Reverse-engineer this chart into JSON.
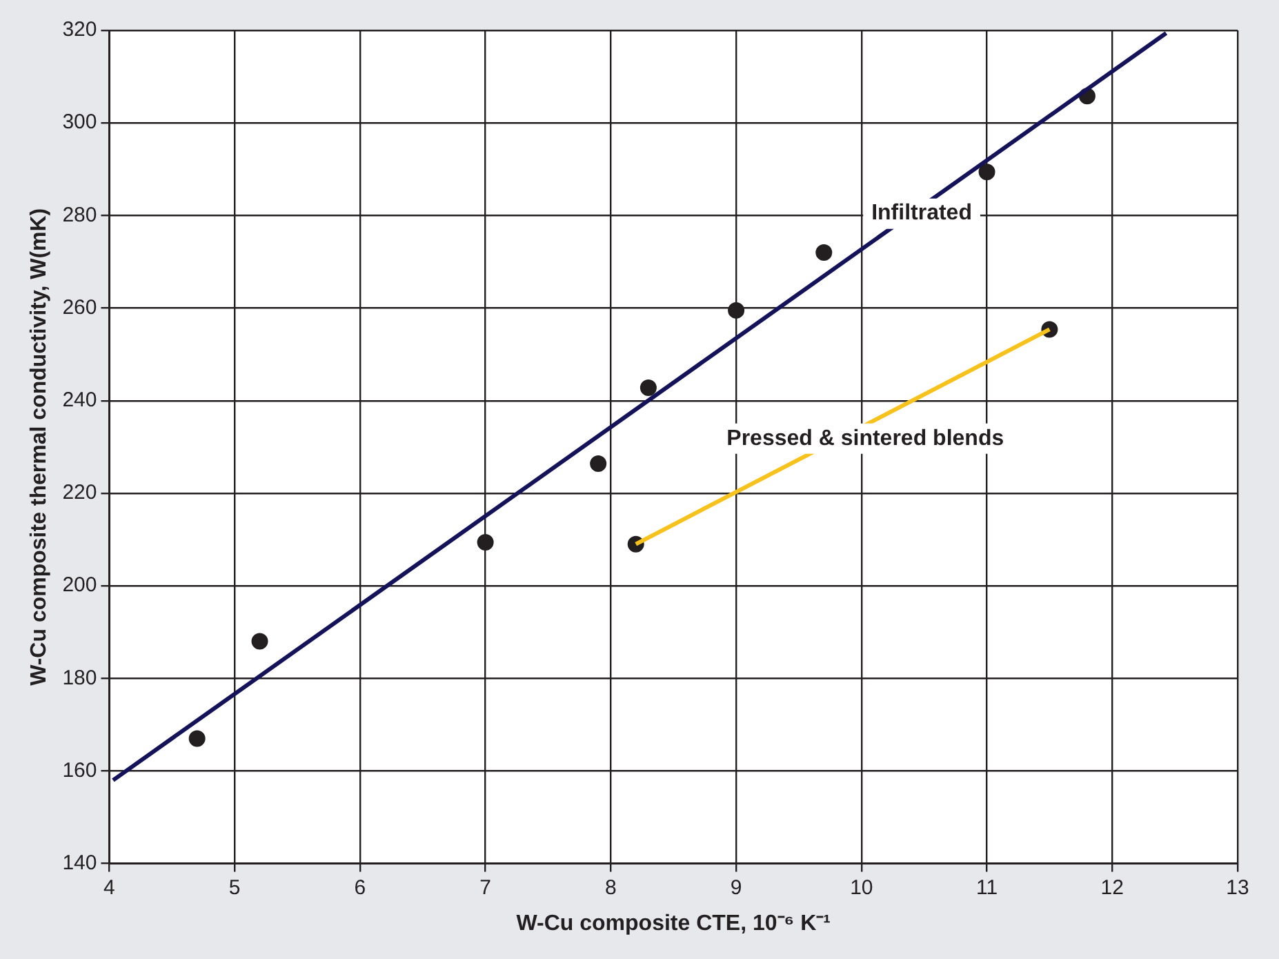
{
  "chart_data": {
    "type": "scatter",
    "xlabel": "W-Cu composite CTE, 10⁻⁶ K⁻¹",
    "ylabel": "W-Cu composite thermal conductivity, W(mK)",
    "series": [
      {
        "type": "line",
        "marker": "none",
        "color": "#14135a",
        "x": [
          4.03,
          12.43
        ],
        "values": [
          158,
          319.4
        ]
      },
      {
        "type": "line",
        "marker": "none",
        "color": "#f7c21b",
        "x": [
          8.2,
          11.5
        ],
        "values": [
          209,
          255.4
        ]
      },
      {
        "marker": "circle",
        "color": "#231f20",
        "x": [
          4.7,
          5.2,
          7.0,
          7.9,
          8.3,
          9.0,
          9.7,
          11.0,
          11.8,
          8.2,
          11.5
        ],
        "values": [
          167,
          188,
          209.4,
          226.4,
          242.8,
          259.5,
          272,
          289.4,
          305.8,
          209,
          255.4
        ]
      }
    ],
    "xlim": [
      4,
      13
    ],
    "xticks": [
      4,
      5,
      6,
      7,
      8,
      9,
      10,
      11,
      12,
      13
    ],
    "ylim": [
      140,
      320
    ],
    "yticks": [
      140,
      160,
      180,
      200,
      220,
      240,
      260,
      280,
      300,
      320
    ],
    "grid": true,
    "legend": false,
    "line_style": "solid",
    "annotations": [
      "Infiltrated",
      "Pressed & sintered blends"
    ]
  }
}
